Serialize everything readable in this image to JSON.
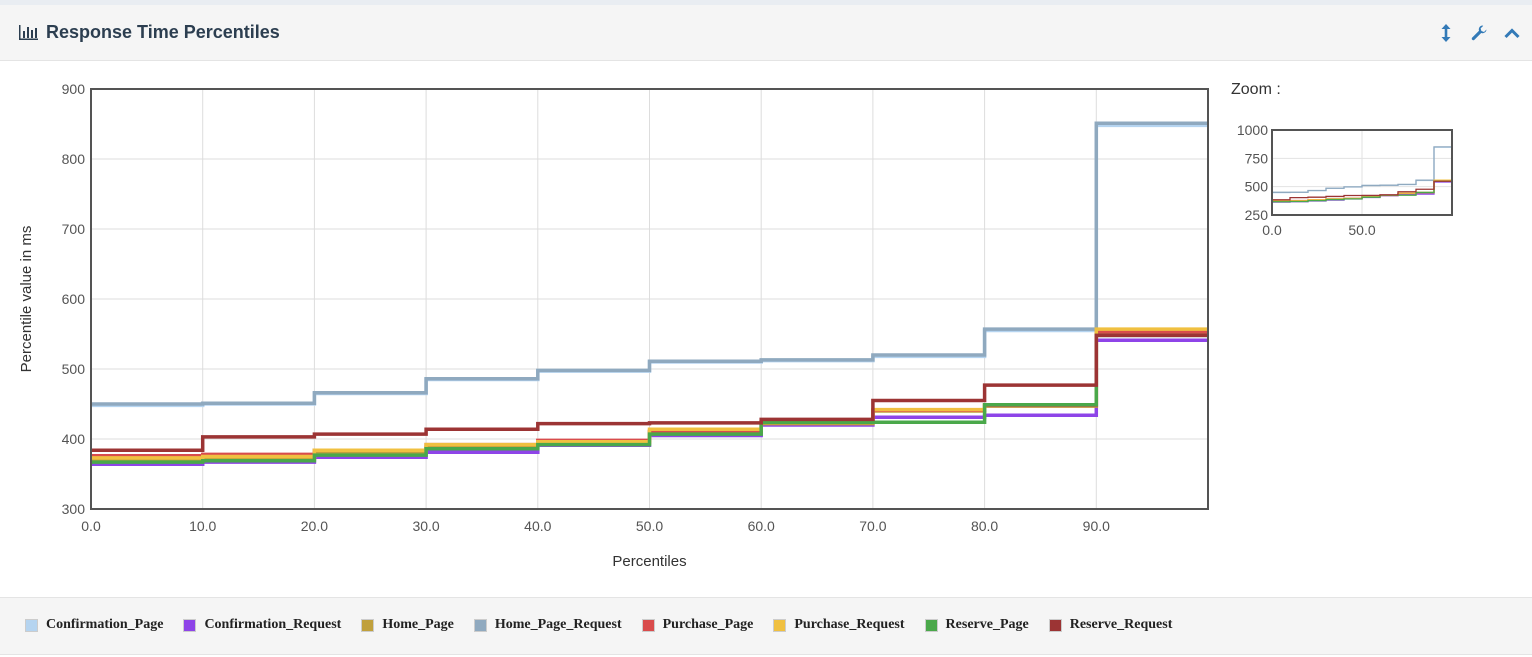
{
  "panel": {
    "title": "Response Time Percentiles",
    "tools": {
      "resize": "resize-vertical-icon",
      "settings": "wrench-icon",
      "collapse": "chevron-up-icon"
    }
  },
  "colors": {
    "accent": "#337ab7"
  },
  "zoom": {
    "label": "Zoom :",
    "y_ticks": [
      "1000",
      "750",
      "500",
      "250"
    ],
    "x_ticks": [
      "0.0",
      "50.0"
    ],
    "y_range": [
      250,
      1000
    ],
    "x_range": [
      0,
      100
    ]
  },
  "chart_data": {
    "type": "line",
    "step": true,
    "xlabel": "Percentiles",
    "ylabel": "Percentile value in ms",
    "xlim": [
      0,
      100
    ],
    "ylim": [
      300,
      900
    ],
    "x_ticks": [
      "0.0",
      "10.0",
      "20.0",
      "30.0",
      "40.0",
      "50.0",
      "60.0",
      "70.0",
      "80.0",
      "90.0"
    ],
    "y_ticks": [
      "900",
      "800",
      "700",
      "600",
      "500",
      "400",
      "300"
    ],
    "grid": true,
    "legend_position": "bottom",
    "x": [
      0,
      10,
      20,
      30,
      40,
      50,
      60,
      70,
      80,
      90,
      100
    ],
    "series": [
      {
        "name": "Confirmation_Page",
        "color": "#b5d4f0",
        "values": [
          448,
          450,
          465,
          485,
          497,
          510,
          512,
          518,
          555,
          848,
          848
        ]
      },
      {
        "name": "Confirmation_Request",
        "color": "#8e44e8",
        "values": [
          364,
          367,
          374,
          381,
          391,
          405,
          420,
          431,
          434,
          541,
          541
        ]
      },
      {
        "name": "Home_Page",
        "color": "#c0a03c",
        "values": [
          370,
          372,
          380,
          388,
          395,
          410,
          422,
          440,
          447,
          552,
          552
        ]
      },
      {
        "name": "Home_Page_Request",
        "color": "#8fa9bf",
        "values": [
          450,
          451,
          466,
          486,
          498,
          511,
          513,
          520,
          557,
          851,
          851
        ]
      },
      {
        "name": "Purchase_Page",
        "color": "#d94c4c",
        "values": [
          376,
          378,
          384,
          392,
          398,
          411,
          424,
          441,
          448,
          553,
          553
        ]
      },
      {
        "name": "Purchase_Request",
        "color": "#f0c040",
        "values": [
          373,
          375,
          384,
          392,
          396,
          414,
          425,
          442,
          449,
          557,
          557
        ]
      },
      {
        "name": "Reserve_Page",
        "color": "#4aa84a",
        "values": [
          367,
          369,
          377,
          386,
          392,
          407,
          424,
          424,
          449,
          548,
          548
        ]
      },
      {
        "name": "Reserve_Request",
        "color": "#9c3434",
        "values": [
          384,
          403,
          407,
          414,
          422,
          423,
          428,
          455,
          477,
          548,
          548
        ]
      }
    ]
  }
}
